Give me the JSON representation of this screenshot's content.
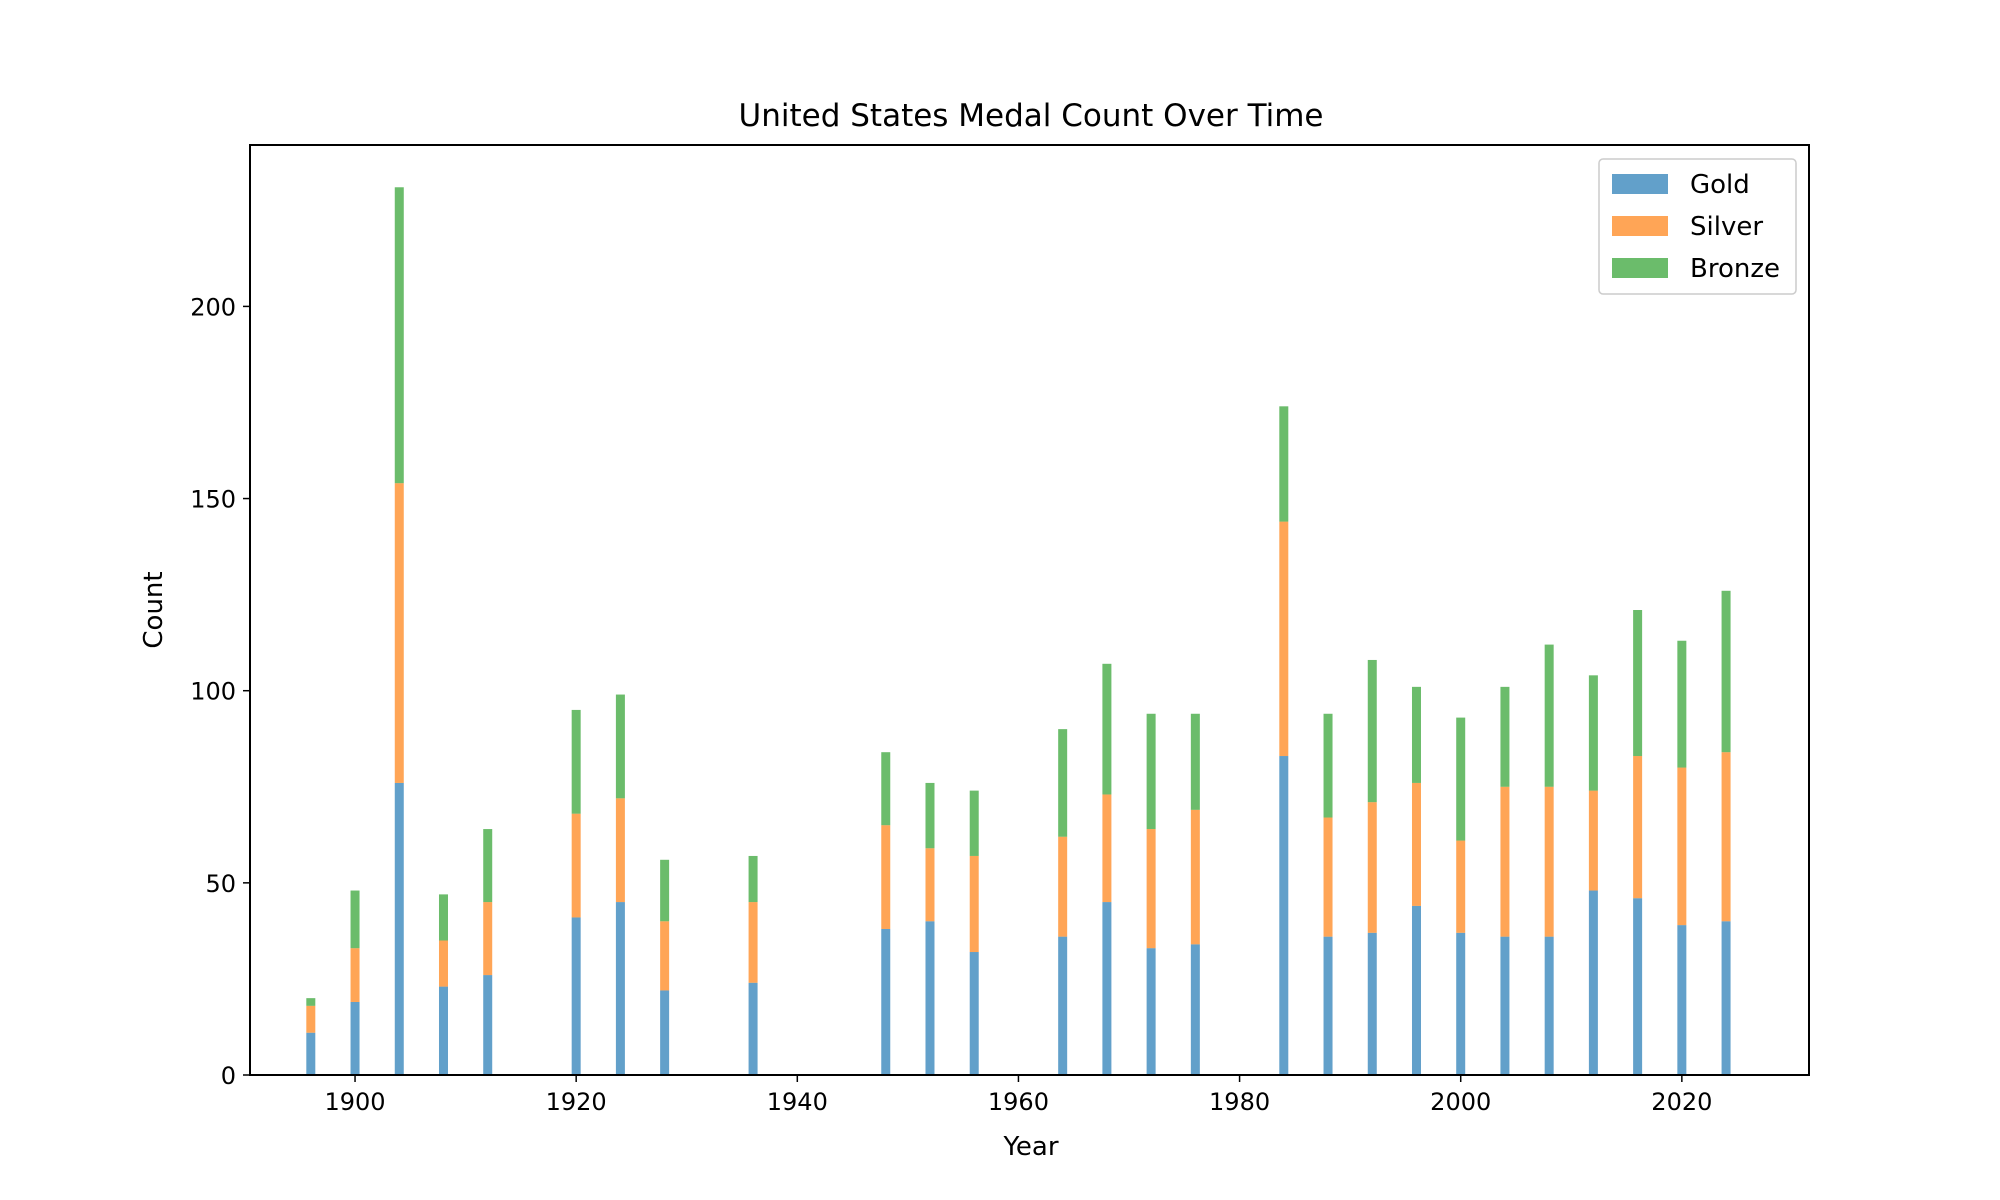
{
  "chart_data": {
    "type": "bar",
    "stacked": true,
    "title": "United States Medal Count Over Time",
    "xlabel": "Year",
    "ylabel": "Count",
    "x": [
      1896,
      1900,
      1904,
      1908,
      1912,
      1920,
      1924,
      1928,
      1936,
      1948,
      1952,
      1956,
      1964,
      1968,
      1972,
      1976,
      1984,
      1988,
      1992,
      1996,
      2000,
      2004,
      2008,
      2012,
      2016,
      2020,
      2024
    ],
    "series": [
      {
        "name": "Gold",
        "color": "#1f77b4",
        "values": [
          11,
          19,
          76,
          23,
          26,
          41,
          45,
          22,
          24,
          38,
          40,
          32,
          36,
          45,
          33,
          34,
          83,
          36,
          37,
          44,
          37,
          36,
          36,
          48,
          46,
          39,
          40
        ]
      },
      {
        "name": "Silver",
        "color": "#ff7f0e",
        "values": [
          7,
          14,
          78,
          12,
          19,
          27,
          27,
          18,
          21,
          27,
          19,
          25,
          26,
          28,
          31,
          35,
          61,
          31,
          34,
          32,
          24,
          39,
          39,
          26,
          37,
          41,
          44
        ]
      },
      {
        "name": "Bronze",
        "color": "#2ca02c",
        "values": [
          2,
          15,
          77,
          12,
          19,
          27,
          27,
          16,
          12,
          19,
          17,
          17,
          28,
          34,
          30,
          25,
          30,
          27,
          37,
          25,
          32,
          26,
          37,
          30,
          38,
          33,
          42
        ]
      }
    ],
    "xlim": [
      1890.5,
      2031.5
    ],
    "ylim": [
      0,
      242
    ],
    "xticks": [
      "1900",
      "1920",
      "1940",
      "1960",
      "1980",
      "2000",
      "2020"
    ],
    "yticks": [
      "0",
      "50",
      "100",
      "150",
      "200"
    ],
    "bar_alpha": 0.7,
    "legend_position": "top-right",
    "grid": false
  }
}
